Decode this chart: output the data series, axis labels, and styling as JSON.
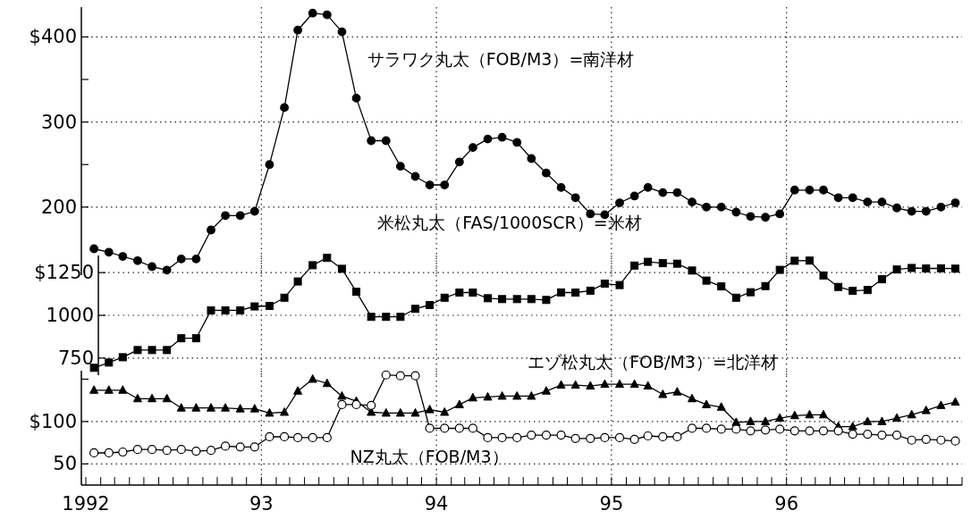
{
  "chart_data": [
    {
      "type": "line",
      "x": [
        "1992-01-18",
        "1992-02-18",
        "1992-03-18",
        "1992-04-18",
        "1992-05-18",
        "1992-06-18",
        "1992-07-18",
        "1992-08-18",
        "1992-09-18",
        "1992-10-18",
        "1992-11-18",
        "1992-12-18",
        "1993-01-18",
        "1993-02-18",
        "1993-03-18",
        "1993-04-18",
        "1993-05-18",
        "1993-06-18",
        "1993-07-18",
        "1993-08-18",
        "1993-09-18",
        "1993-10-18",
        "1993-11-18",
        "1993-12-18",
        "1994-01-18",
        "1994-02-18",
        "1994-03-18",
        "1994-04-18",
        "1994-05-18",
        "1994-06-18",
        "1994-07-18",
        "1994-08-18",
        "1994-09-18",
        "1994-10-18",
        "1994-11-18",
        "1994-12-18",
        "1995-01-18",
        "1995-02-18",
        "1995-03-18",
        "1995-04-18",
        "1995-05-18",
        "1995-06-18",
        "1995-07-18",
        "1995-08-18",
        "1995-09-18",
        "1995-10-18",
        "1995-11-18",
        "1995-12-18",
        "1996-01-18",
        "1996-02-18",
        "1996-03-18",
        "1996-04-18",
        "1996-05-18",
        "1996-06-18",
        "1996-07-18",
        "1996-08-18",
        "1996-09-18",
        "1996-10-18",
        "1996-11-18",
        "1996-12-18"
      ],
      "series": [
        {
          "name": "サラワク丸太（FOB/M3）=南洋材",
          "color": "#000000",
          "marker": "circle",
          "values": [
            151,
            147,
            142,
            137,
            130,
            126,
            139,
            139,
            173,
            190,
            190,
            195,
            250,
            317,
            408,
            428,
            426,
            406,
            328,
            278,
            278,
            248,
            236,
            226,
            226,
            253,
            270,
            280,
            282,
            276,
            257,
            240,
            223,
            211,
            192,
            191,
            205,
            213,
            223,
            217,
            217,
            206,
            200,
            200,
            194,
            189,
            188,
            192,
            220,
            220,
            220,
            211,
            211,
            206,
            206,
            199,
            195,
            195,
            200,
            205
          ]
        }
      ],
      "xlim": [
        "1992-01-01",
        "1997-01-01"
      ],
      "xticks": [
        {
          "value": "1993-01-01",
          "label": null
        },
        {
          "value": "1994-01-01",
          "label": null
        },
        {
          "value": "1995-01-01",
          "label": null
        },
        {
          "value": "1996-01-01",
          "label": null
        }
      ],
      "ylim": [
        120,
        435
      ],
      "yticks": [
        {
          "value": 400,
          "label": "$400"
        },
        {
          "value": 350,
          "label": null
        },
        300,
        {
          "value": 250,
          "label": null
        },
        200
      ],
      "tick_labels": "y",
      "grid": true
    },
    {
      "type": "line",
      "x": [
        "1992-01-18",
        "1992-02-18",
        "1992-03-18",
        "1992-04-18",
        "1992-05-18",
        "1992-06-18",
        "1992-07-18",
        "1992-08-18",
        "1992-09-18",
        "1992-10-18",
        "1992-11-18",
        "1992-12-18",
        "1993-01-18",
        "1993-02-18",
        "1993-03-18",
        "1993-04-18",
        "1993-05-18",
        "1993-06-18",
        "1993-07-18",
        "1993-08-18",
        "1993-09-18",
        "1993-10-18",
        "1993-11-18",
        "1993-12-18",
        "1994-01-18",
        "1994-02-18",
        "1994-03-18",
        "1994-04-18",
        "1994-05-18",
        "1994-06-18",
        "1994-07-18",
        "1994-08-18",
        "1994-09-18",
        "1994-10-18",
        "1994-11-18",
        "1994-12-18",
        "1995-01-18",
        "1995-02-18",
        "1995-03-18",
        "1995-04-18",
        "1995-05-18",
        "1995-06-18",
        "1995-07-18",
        "1995-08-18",
        "1995-09-18",
        "1995-10-18",
        "1995-11-18",
        "1995-12-18",
        "1996-01-18",
        "1996-02-18",
        "1996-03-18",
        "1996-04-18",
        "1996-05-18",
        "1996-06-18",
        "1996-07-18",
        "1996-08-18",
        "1996-09-18",
        "1996-10-18",
        "1996-11-18",
        "1996-12-18"
      ],
      "series": [
        {
          "name": "米松丸太（FAS/1000SCR）=米材",
          "color": "#000000",
          "marker": "square",
          "values": [
            693,
            724,
            755,
            797,
            797,
            797,
            866,
            866,
            1029,
            1029,
            1029,
            1052,
            1055,
            1103,
            1198,
            1293,
            1336,
            1272,
            1138,
            991,
            991,
            991,
            1038,
            1060,
            1103,
            1133,
            1133,
            1100,
            1095,
            1095,
            1095,
            1090,
            1134,
            1133,
            1144,
            1185,
            1177,
            1291,
            1313,
            1305,
            1302,
            1262,
            1203,
            1169,
            1103,
            1135,
            1171,
            1266,
            1319,
            1320,
            1233,
            1166,
            1143,
            1148,
            1211,
            1268,
            1277,
            1274,
            1275,
            1273
          ]
        }
      ],
      "xlim": [
        "1992-01-01",
        "1997-01-01"
      ],
      "xticks": [
        {
          "value": "1993-01-01",
          "label": null
        },
        {
          "value": "1994-01-01",
          "label": null
        },
        {
          "value": "1995-01-01",
          "label": null
        },
        {
          "value": "1996-01-01",
          "label": null
        }
      ],
      "ylim": [
        650,
        1350
      ],
      "yticks": [
        {
          "value": 1250,
          "label": "$1250"
        },
        1000,
        750
      ],
      "tick_labels": "y",
      "grid": true
    },
    {
      "type": "line",
      "x": [
        "1992-01-18",
        "1992-02-18",
        "1992-03-18",
        "1992-04-18",
        "1992-05-18",
        "1992-06-18",
        "1992-07-18",
        "1992-08-18",
        "1992-09-18",
        "1992-10-18",
        "1992-11-18",
        "1992-12-18",
        "1993-01-18",
        "1993-02-18",
        "1993-03-18",
        "1993-04-18",
        "1993-05-18",
        "1993-06-18",
        "1993-07-18",
        "1993-08-18",
        "1993-09-18",
        "1993-10-18",
        "1993-11-18",
        "1993-12-18",
        "1994-01-18",
        "1994-02-18",
        "1994-03-18",
        "1994-04-18",
        "1994-05-18",
        "1994-06-18",
        "1994-07-18",
        "1994-08-18",
        "1994-09-18",
        "1994-10-18",
        "1994-11-18",
        "1994-12-18",
        "1995-01-18",
        "1995-02-18",
        "1995-03-18",
        "1995-04-18",
        "1995-05-18",
        "1995-06-18",
        "1995-07-18",
        "1995-08-18",
        "1995-09-18",
        "1995-10-18",
        "1995-11-18",
        "1995-12-18",
        "1996-01-18",
        "1996-02-18",
        "1996-03-18",
        "1996-04-18",
        "1996-05-18",
        "1996-06-18",
        "1996-07-18",
        "1996-08-18",
        "1996-09-18",
        "1996-10-18",
        "1996-11-18",
        "1996-12-18"
      ],
      "series": [
        {
          "name": "エゾ松丸太（FOB/M3）=北洋材",
          "color": "#000000",
          "marker": "triangle",
          "values": [
            137,
            137,
            137,
            127,
            127,
            127,
            116,
            116,
            116,
            116,
            115,
            115,
            110,
            111,
            136,
            150,
            145,
            130,
            124,
            111,
            110,
            110,
            110,
            114,
            111,
            120,
            128,
            129,
            130,
            130,
            130,
            136,
            143,
            143,
            142,
            144,
            144,
            144,
            142,
            132,
            135,
            127,
            120,
            117,
            99,
            100,
            100,
            104,
            107,
            108,
            108,
            94,
            94,
            100,
            100,
            104,
            108,
            113,
            119,
            123
          ]
        },
        {
          "name": "NZ丸太（FOB/M3）",
          "color": "#000000",
          "marker": "circle",
          "values": [
            63,
            63,
            64,
            67,
            67,
            66,
            67,
            65,
            66,
            71,
            70,
            70,
            82,
            82,
            81,
            81,
            81,
            120,
            120,
            119,
            155,
            154,
            154,
            92,
            92,
            92,
            92,
            81,
            81,
            81,
            84,
            84,
            84,
            80,
            80,
            81,
            81,
            79,
            83,
            82,
            82,
            92,
            92,
            91,
            91,
            89,
            90,
            91,
            89,
            89,
            89,
            89,
            85,
            85,
            84,
            84,
            78,
            79,
            78,
            77
          ]
        }
      ],
      "xlim": [
        "1992-01-01",
        "1997-01-01"
      ],
      "xticks": [
        {
          "value": "1992-01-01",
          "label": "1992"
        },
        {
          "value": "1992-02-01",
          "label": null
        },
        {
          "value": "1992-03-01",
          "label": null
        },
        {
          "value": "1992-04-01",
          "label": null
        },
        {
          "value": "1992-05-01",
          "label": null
        },
        {
          "value": "1992-06-01",
          "label": null
        },
        {
          "value": "1992-07-01",
          "label": null
        },
        {
          "value": "1992-08-01",
          "label": null
        },
        {
          "value": "1992-09-01",
          "label": null
        },
        {
          "value": "1992-10-01",
          "label": null
        },
        {
          "value": "1992-11-01",
          "label": null
        },
        {
          "value": "1992-12-01",
          "label": null
        },
        {
          "value": "1993-01-01",
          "label": "93"
        },
        {
          "value": "1993-02-01",
          "label": null
        },
        {
          "value": "1993-03-01",
          "label": null
        },
        {
          "value": "1993-04-01",
          "label": null
        },
        {
          "value": "1993-05-01",
          "label": null
        },
        {
          "value": "1993-06-01",
          "label": null
        },
        {
          "value": "1993-07-01",
          "label": null
        },
        {
          "value": "1993-08-01",
          "label": null
        },
        {
          "value": "1993-09-01",
          "label": null
        },
        {
          "value": "1993-10-01",
          "label": null
        },
        {
          "value": "1993-11-01",
          "label": null
        },
        {
          "value": "1993-12-01",
          "label": null
        },
        {
          "value": "1994-01-01",
          "label": "94"
        },
        {
          "value": "1994-02-01",
          "label": null
        },
        {
          "value": "1994-03-01",
          "label": null
        },
        {
          "value": "1994-04-01",
          "label": null
        },
        {
          "value": "1994-05-01",
          "label": null
        },
        {
          "value": "1994-06-01",
          "label": null
        },
        {
          "value": "1994-07-01",
          "label": null
        },
        {
          "value": "1994-08-01",
          "label": null
        },
        {
          "value": "1994-09-01",
          "label": null
        },
        {
          "value": "1994-10-01",
          "label": null
        },
        {
          "value": "1994-11-01",
          "label": null
        },
        {
          "value": "1994-12-01",
          "label": null
        },
        {
          "value": "1995-01-01",
          "label": "95"
        },
        {
          "value": "1995-02-01",
          "label": null
        },
        {
          "value": "1995-03-01",
          "label": null
        },
        {
          "value": "1995-04-01",
          "label": null
        },
        {
          "value": "1995-05-01",
          "label": null
        },
        {
          "value": "1995-06-01",
          "label": null
        },
        {
          "value": "1995-07-01",
          "label": null
        },
        {
          "value": "1995-08-01",
          "label": null
        },
        {
          "value": "1995-09-01",
          "label": null
        },
        {
          "value": "1995-10-01",
          "label": null
        },
        {
          "value": "1995-11-01",
          "label": null
        },
        {
          "value": "1995-12-01",
          "label": null
        },
        {
          "value": "1996-01-01",
          "label": "96"
        },
        {
          "value": "1996-02-01",
          "label": null
        },
        {
          "value": "1996-03-01",
          "label": null
        },
        {
          "value": "1996-04-01",
          "label": null
        },
        {
          "value": "1996-05-01",
          "label": null
        },
        {
          "value": "1996-06-01",
          "label": null
        },
        {
          "value": "1996-07-01",
          "label": null
        },
        {
          "value": "1996-08-01",
          "label": null
        },
        {
          "value": "1996-09-01",
          "label": null
        },
        {
          "value": "1996-10-01",
          "label": null
        },
        {
          "value": "1996-11-01",
          "label": null
        },
        {
          "value": "1996-12-01",
          "label": null
        },
        {
          "value": "1997-01-01",
          "label": null
        }
      ],
      "ylim": [
        25,
        160
      ],
      "yticks": [
        {
          "value": 150,
          "label": null
        },
        {
          "value": 100,
          "label": "$100"
        },
        50
      ],
      "grid": true
    }
  ]
}
